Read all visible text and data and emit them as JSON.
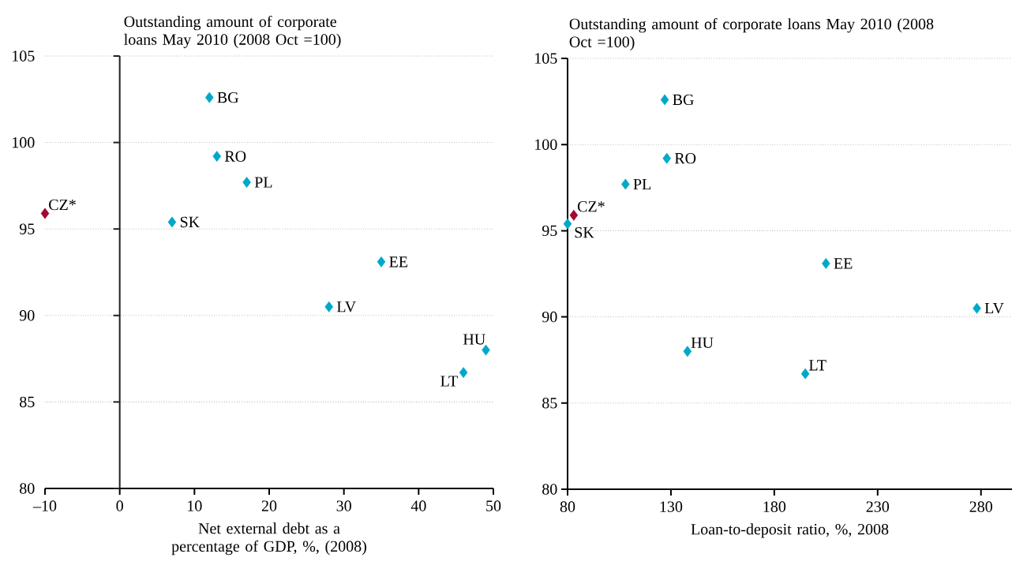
{
  "chart_data": [
    {
      "type": "scatter",
      "title": "Outstanding amount of corporate loans May 2010 (2008 Oct =100)",
      "xlabel": "Net external debt as a percentage of GDP, %, (2008)",
      "series": [
        {
          "color": "#00a8c8",
          "x": [
            12,
            13,
            17,
            7,
            35,
            28,
            49,
            46
          ],
          "values": [
            102.6,
            99.2,
            97.7,
            95.4,
            93.1,
            90.5,
            88.0,
            86.7
          ]
        },
        {
          "color": "#a00a32",
          "x": [
            -10
          ],
          "values": [
            95.9
          ]
        }
      ],
      "annotations": [
        {
          "text": "BG",
          "x": 12,
          "y": 102.6
        },
        {
          "text": "RO",
          "x": 13,
          "y": 99.2
        },
        {
          "text": "PL",
          "x": 17,
          "y": 97.7
        },
        {
          "text": "SK",
          "x": 7,
          "y": 95.4
        },
        {
          "text": "EE",
          "x": 35,
          "y": 93.1
        },
        {
          "text": "LV",
          "x": 28,
          "y": 90.5
        },
        {
          "text": "HU",
          "x": 49,
          "y": 88.0
        },
        {
          "text": "LT",
          "x": 46,
          "y": 86.7
        },
        {
          "text": "CZ*",
          "x": -10,
          "y": 95.9
        }
      ],
      "xlim": [
        -10,
        50
      ],
      "xticks": [
        {
          "value": -10,
          "label": "–10"
        },
        0,
        10,
        20,
        30,
        40,
        50
      ],
      "ylim": [
        80,
        105
      ],
      "yticks": [
        80,
        85,
        90,
        95,
        100,
        105
      ],
      "ref_lines": [
        {
          "axis": "x",
          "value": 0,
          "color": "#231f20"
        }
      ],
      "grid": "y",
      "marker": "diamond"
    },
    {
      "type": "scatter",
      "title": "Outstanding amount of corporate loans May 2010 (2008 Oct =100)",
      "xlabel": "Loan-to-deposit ratio, %, 2008",
      "series": [
        {
          "color": "#00a8c8",
          "x": [
            127,
            128,
            108,
            80,
            205,
            278,
            138,
            195
          ],
          "values": [
            102.6,
            99.2,
            97.7,
            95.4,
            93.1,
            90.5,
            88.0,
            86.7
          ]
        },
        {
          "color": "#a00a32",
          "x": [
            83
          ],
          "values": [
            95.9
          ]
        }
      ],
      "annotations": [
        {
          "text": "BG",
          "x": 127,
          "y": 102.6
        },
        {
          "text": "RO",
          "x": 128,
          "y": 99.2
        },
        {
          "text": "PL",
          "x": 108,
          "y": 97.7
        },
        {
          "text": "SK",
          "x": 80,
          "y": 95.4
        },
        {
          "text": "EE",
          "x": 205,
          "y": 93.1
        },
        {
          "text": "LV",
          "x": 278,
          "y": 90.5
        },
        {
          "text": "HU",
          "x": 138,
          "y": 88.0
        },
        {
          "text": "LT",
          "x": 195,
          "y": 86.7
        },
        {
          "text": "CZ*",
          "x": 83,
          "y": 95.9
        }
      ],
      "xlim": [
        80,
        295
      ],
      "xticks": [
        80,
        130,
        180,
        230,
        280
      ],
      "ylim": [
        80,
        105
      ],
      "yticks": [
        80,
        85,
        90,
        95,
        100,
        105
      ],
      "grid": "y",
      "marker": "diamond"
    }
  ]
}
